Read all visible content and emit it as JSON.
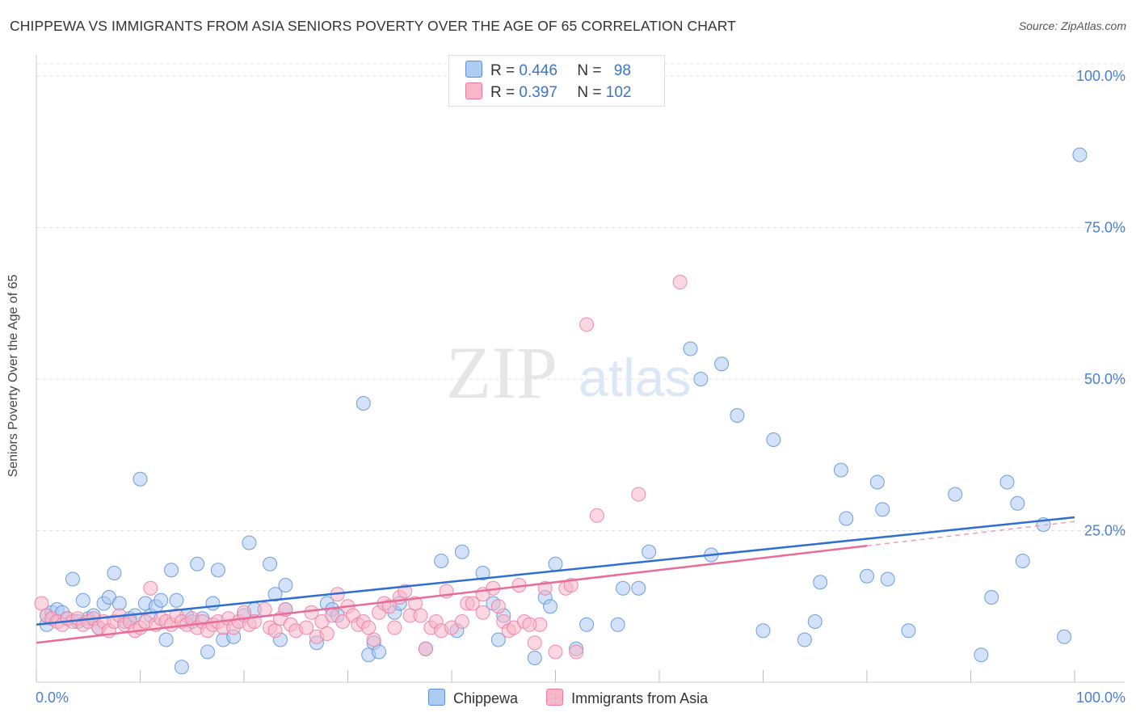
{
  "title": "CHIPPEWA VS IMMIGRANTS FROM ASIA SENIORS POVERTY OVER THE AGE OF 65 CORRELATION CHART",
  "source": "Source: ZipAtlas.com",
  "watermark": {
    "zip": "ZIP",
    "atlas": "atlas"
  },
  "legend_top": {
    "rows": [
      {
        "r_label": "R =",
        "r_value": "0.446",
        "n_label": "N =",
        "n_value": "98",
        "color": "#aecbf2"
      },
      {
        "r_label": "R =",
        "r_value": "0.397",
        "n_label": "N =",
        "n_value": "102",
        "color": "#f7b7c8"
      }
    ]
  },
  "legend_bottom": [
    {
      "label": "Chippewa",
      "color": "#aecbf2"
    },
    {
      "label": "Immigrants from Asia",
      "color": "#f7b7c8"
    }
  ],
  "chart_data": {
    "type": "scatter",
    "title": "CHIPPEWA VS IMMIGRANTS FROM ASIA SENIORS POVERTY OVER THE AGE OF 65 CORRELATION CHART",
    "xlabel": "",
    "ylabel": "Seniors Poverty Over the Age of 65",
    "xlim": [
      0,
      100
    ],
    "ylim": [
      0,
      102
    ],
    "x_tick_labels": [
      "0.0%",
      "100.0%"
    ],
    "y_ticks": [
      25,
      50,
      75,
      100
    ],
    "y_tick_labels": [
      "25.0%",
      "50.0%",
      "75.0%",
      "100.0%"
    ],
    "grid": true,
    "series": [
      {
        "name": "Chippewa",
        "color": "#5b8fd6",
        "fill": "#aecbf2",
        "trend": {
          "x": [
            0,
            100
          ],
          "y": [
            9.5,
            27.2
          ]
        },
        "points": [
          [
            1,
            9.5
          ],
          [
            1,
            11
          ],
          [
            1.5,
            11.5
          ],
          [
            2,
            12
          ],
          [
            2.5,
            11.5
          ],
          [
            3,
            10.5
          ],
          [
            3.5,
            17
          ],
          [
            4,
            10
          ],
          [
            4.5,
            13.5
          ],
          [
            5,
            10.5
          ],
          [
            5.5,
            11
          ],
          [
            6,
            9
          ],
          [
            6.5,
            13
          ],
          [
            7,
            14
          ],
          [
            7.5,
            18
          ],
          [
            8,
            13
          ],
          [
            8.5,
            10
          ],
          [
            9,
            10.5
          ],
          [
            9.5,
            11
          ],
          [
            10,
            33.5
          ],
          [
            10.5,
            13
          ],
          [
            11,
            11
          ],
          [
            11.5,
            12.5
          ],
          [
            12,
            13.5
          ],
          [
            12.5,
            7
          ],
          [
            13,
            18.5
          ],
          [
            13.5,
            13.5
          ],
          [
            14,
            2.5
          ],
          [
            14.5,
            11
          ],
          [
            15,
            10
          ],
          [
            15.5,
            19.5
          ],
          [
            16,
            10.5
          ],
          [
            16.5,
            5
          ],
          [
            17,
            13
          ],
          [
            17.5,
            18.5
          ],
          [
            18,
            7
          ],
          [
            19,
            7.5
          ],
          [
            20,
            11
          ],
          [
            20.5,
            23
          ],
          [
            21,
            12
          ],
          [
            22.5,
            19.5
          ],
          [
            23,
            14.5
          ],
          [
            23.5,
            7
          ],
          [
            24,
            12
          ],
          [
            24,
            16
          ],
          [
            27,
            6.5
          ],
          [
            28,
            13
          ],
          [
            28.5,
            12
          ],
          [
            29,
            11
          ],
          [
            31.5,
            46
          ],
          [
            32,
            4.5
          ],
          [
            32.5,
            6.5
          ],
          [
            33,
            5
          ],
          [
            34.5,
            11.5
          ],
          [
            35,
            13
          ],
          [
            37.5,
            5.5
          ],
          [
            39,
            20
          ],
          [
            40.5,
            8.5
          ],
          [
            41,
            21.5
          ],
          [
            43,
            18
          ],
          [
            44,
            13
          ],
          [
            44.5,
            7
          ],
          [
            45,
            11
          ],
          [
            48,
            4
          ],
          [
            49,
            14
          ],
          [
            49.5,
            12.5
          ],
          [
            50,
            19.5
          ],
          [
            52,
            5.5
          ],
          [
            53,
            9.5
          ],
          [
            56,
            9.5
          ],
          [
            56.5,
            15.5
          ],
          [
            58,
            15.5
          ],
          [
            59,
            21.5
          ],
          [
            63,
            55
          ],
          [
            64,
            50
          ],
          [
            65,
            21
          ],
          [
            66,
            52.5
          ],
          [
            67.5,
            44
          ],
          [
            70,
            8.5
          ],
          [
            71,
            40
          ],
          [
            74,
            7
          ],
          [
            75,
            10
          ],
          [
            75.5,
            16.5
          ],
          [
            77.5,
            35
          ],
          [
            78,
            27
          ],
          [
            80,
            17.5
          ],
          [
            81,
            33
          ],
          [
            81.5,
            28.5
          ],
          [
            82,
            17
          ],
          [
            84,
            8.5
          ],
          [
            88.5,
            31
          ],
          [
            91,
            4.5
          ],
          [
            92,
            14
          ],
          [
            93.5,
            33
          ],
          [
            94.5,
            29.5
          ],
          [
            95,
            20
          ],
          [
            97,
            26
          ],
          [
            99,
            7.5
          ],
          [
            100.5,
            87
          ]
        ]
      },
      {
        "name": "Immigrants from Asia",
        "color": "#ec7aa0",
        "fill": "#f7b7c8",
        "trend": {
          "x": [
            0,
            80
          ],
          "y": [
            6.5,
            22.5
          ]
        },
        "trend_extension": {
          "x": [
            80,
            100
          ],
          "y": [
            22.5,
            26.5
          ]
        },
        "points": [
          [
            0.5,
            13
          ],
          [
            1,
            11
          ],
          [
            1.5,
            10.5
          ],
          [
            2,
            10
          ],
          [
            2.5,
            9.5
          ],
          [
            3,
            10.5
          ],
          [
            3.5,
            10
          ],
          [
            4,
            10.5
          ],
          [
            4.5,
            9.5
          ],
          [
            5,
            10
          ],
          [
            5.5,
            10.5
          ],
          [
            6,
            9
          ],
          [
            6.5,
            10
          ],
          [
            7,
            8.5
          ],
          [
            7.5,
            10
          ],
          [
            8,
            11
          ],
          [
            8.5,
            9.5
          ],
          [
            9,
            10
          ],
          [
            9.5,
            8.5
          ],
          [
            10,
            9
          ],
          [
            10.5,
            10
          ],
          [
            11,
            15.5
          ],
          [
            11.5,
            9.5
          ],
          [
            12,
            10.5
          ],
          [
            12.5,
            10
          ],
          [
            13,
            9.5
          ],
          [
            13.5,
            11
          ],
          [
            14,
            10
          ],
          [
            14.5,
            9.5
          ],
          [
            15,
            10.5
          ],
          [
            15.5,
            9
          ],
          [
            16,
            10
          ],
          [
            16.5,
            8.5
          ],
          [
            17,
            9.5
          ],
          [
            17.5,
            10
          ],
          [
            18,
            9
          ],
          [
            18.5,
            10.5
          ],
          [
            19,
            9
          ],
          [
            19.5,
            10
          ],
          [
            20,
            11.5
          ],
          [
            20.5,
            9.5
          ],
          [
            21,
            10
          ],
          [
            22,
            12
          ],
          [
            22.5,
            9
          ],
          [
            23,
            8.5
          ],
          [
            23.5,
            10.5
          ],
          [
            24,
            12
          ],
          [
            24.5,
            9.5
          ],
          [
            25,
            8.5
          ],
          [
            26,
            9
          ],
          [
            26.5,
            11.5
          ],
          [
            27,
            7.5
          ],
          [
            27.5,
            10
          ],
          [
            28,
            8
          ],
          [
            28.5,
            11
          ],
          [
            29,
            14.5
          ],
          [
            29.5,
            10
          ],
          [
            30,
            12.5
          ],
          [
            30.5,
            11
          ],
          [
            31,
            9.5
          ],
          [
            31.5,
            10
          ],
          [
            32,
            9
          ],
          [
            32.5,
            7
          ],
          [
            33,
            11.5
          ],
          [
            33.5,
            13
          ],
          [
            34,
            12.5
          ],
          [
            34.5,
            9
          ],
          [
            35,
            14
          ],
          [
            35.5,
            15
          ],
          [
            36,
            11
          ],
          [
            36.5,
            13
          ],
          [
            37,
            11
          ],
          [
            37.5,
            5.5
          ],
          [
            38,
            9
          ],
          [
            38.5,
            10
          ],
          [
            39,
            8.5
          ],
          [
            39.5,
            15
          ],
          [
            40,
            9
          ],
          [
            41,
            10
          ],
          [
            41.5,
            13
          ],
          [
            43,
            11.5
          ],
          [
            44,
            15.5
          ],
          [
            44.5,
            12.5
          ],
          [
            45,
            10
          ],
          [
            45.5,
            8.5
          ],
          [
            46,
            9
          ],
          [
            46.5,
            16
          ],
          [
            47,
            10
          ],
          [
            48,
            6.5
          ],
          [
            48.5,
            9.5
          ],
          [
            49,
            15.5
          ],
          [
            50,
            5
          ],
          [
            51,
            15.5
          ],
          [
            52,
            5
          ],
          [
            53,
            59
          ],
          [
            54,
            27.5
          ],
          [
            58,
            31
          ],
          [
            62,
            66
          ],
          [
            42,
            13
          ],
          [
            43,
            14.5
          ],
          [
            47.5,
            9.5
          ],
          [
            51.5,
            16
          ]
        ]
      }
    ]
  }
}
